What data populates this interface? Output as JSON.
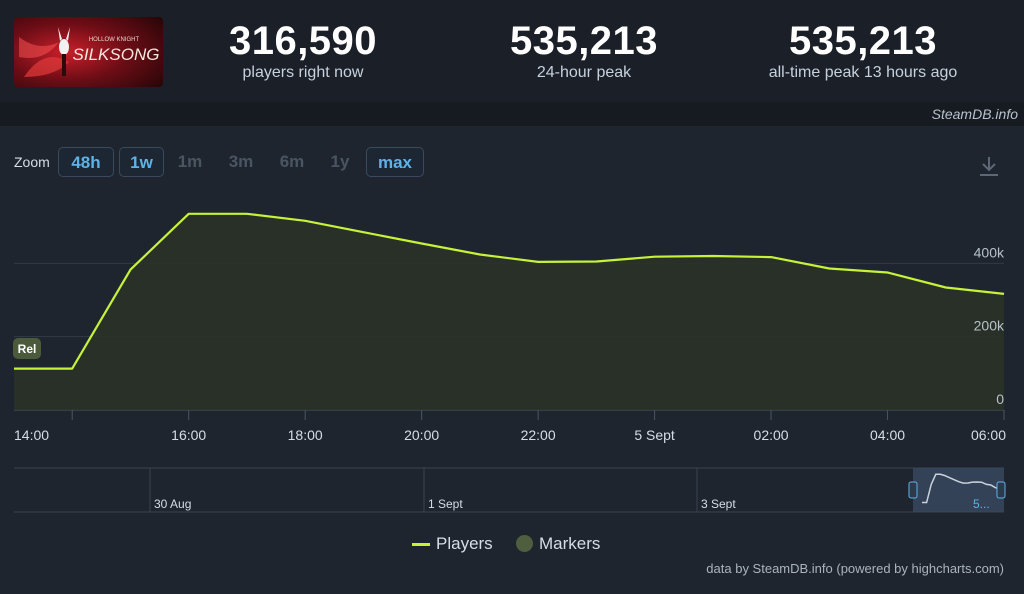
{
  "header": {
    "game_logo_text": "SILKSONG",
    "game_logo_small": "HOLLOW KNIGHT",
    "stats": [
      {
        "value": "316,590",
        "label": "players right now"
      },
      {
        "value": "535,213",
        "label": "24-hour peak"
      },
      {
        "value": "535,213",
        "label": "all-time peak 13 hours ago"
      }
    ],
    "credit": "SteamDB.info"
  },
  "zoom": {
    "label": "Zoom",
    "buttons": [
      {
        "label": "48h",
        "state": "active"
      },
      {
        "label": "1w",
        "state": "active"
      },
      {
        "label": "1m",
        "state": "disabled"
      },
      {
        "label": "3m",
        "state": "disabled"
      },
      {
        "label": "6m",
        "state": "disabled"
      },
      {
        "label": "1y",
        "state": "disabled"
      },
      {
        "label": "max",
        "state": "active"
      }
    ]
  },
  "chart_data": {
    "type": "line",
    "title": "",
    "xlabel": "",
    "ylabel": "",
    "x_ticks": [
      "14:00",
      "16:00",
      "18:00",
      "20:00",
      "22:00",
      "5 Sept",
      "02:00",
      "04:00",
      "06:00"
    ],
    "y_ticks": [
      "0",
      "200k",
      "400k"
    ],
    "ylim": [
      0,
      600000
    ],
    "grid": true,
    "series": [
      {
        "name": "Players",
        "color": "#c6f23a",
        "x": [
          "13:00",
          "14:00",
          "15:00",
          "16:00",
          "17:00",
          "18:00",
          "19:00",
          "20:00",
          "21:00",
          "22:00",
          "23:00",
          "00:00",
          "01:00",
          "02:00",
          "03:00",
          "04:00",
          "05:00",
          "06:00"
        ],
        "values": [
          113000,
          113000,
          383000,
          535213,
          535000,
          516000,
          485000,
          454000,
          424000,
          404000,
          405000,
          418000,
          420000,
          417000,
          386000,
          375000,
          334000,
          316590
        ]
      }
    ],
    "marker": {
      "label": "Rel",
      "x": "14:00"
    },
    "navigator": {
      "labels": [
        "30 Aug",
        "1 Sept",
        "3 Sept",
        "5..."
      ]
    },
    "legend": [
      {
        "name": "Players",
        "type": "line",
        "color": "#c6f23a"
      },
      {
        "name": "Markers",
        "type": "dot",
        "color": "#4e5e3e"
      }
    ],
    "legend_position": "bottom-center"
  },
  "footer": {
    "credit": "data by SteamDB.info (powered by highcharts.com)"
  }
}
